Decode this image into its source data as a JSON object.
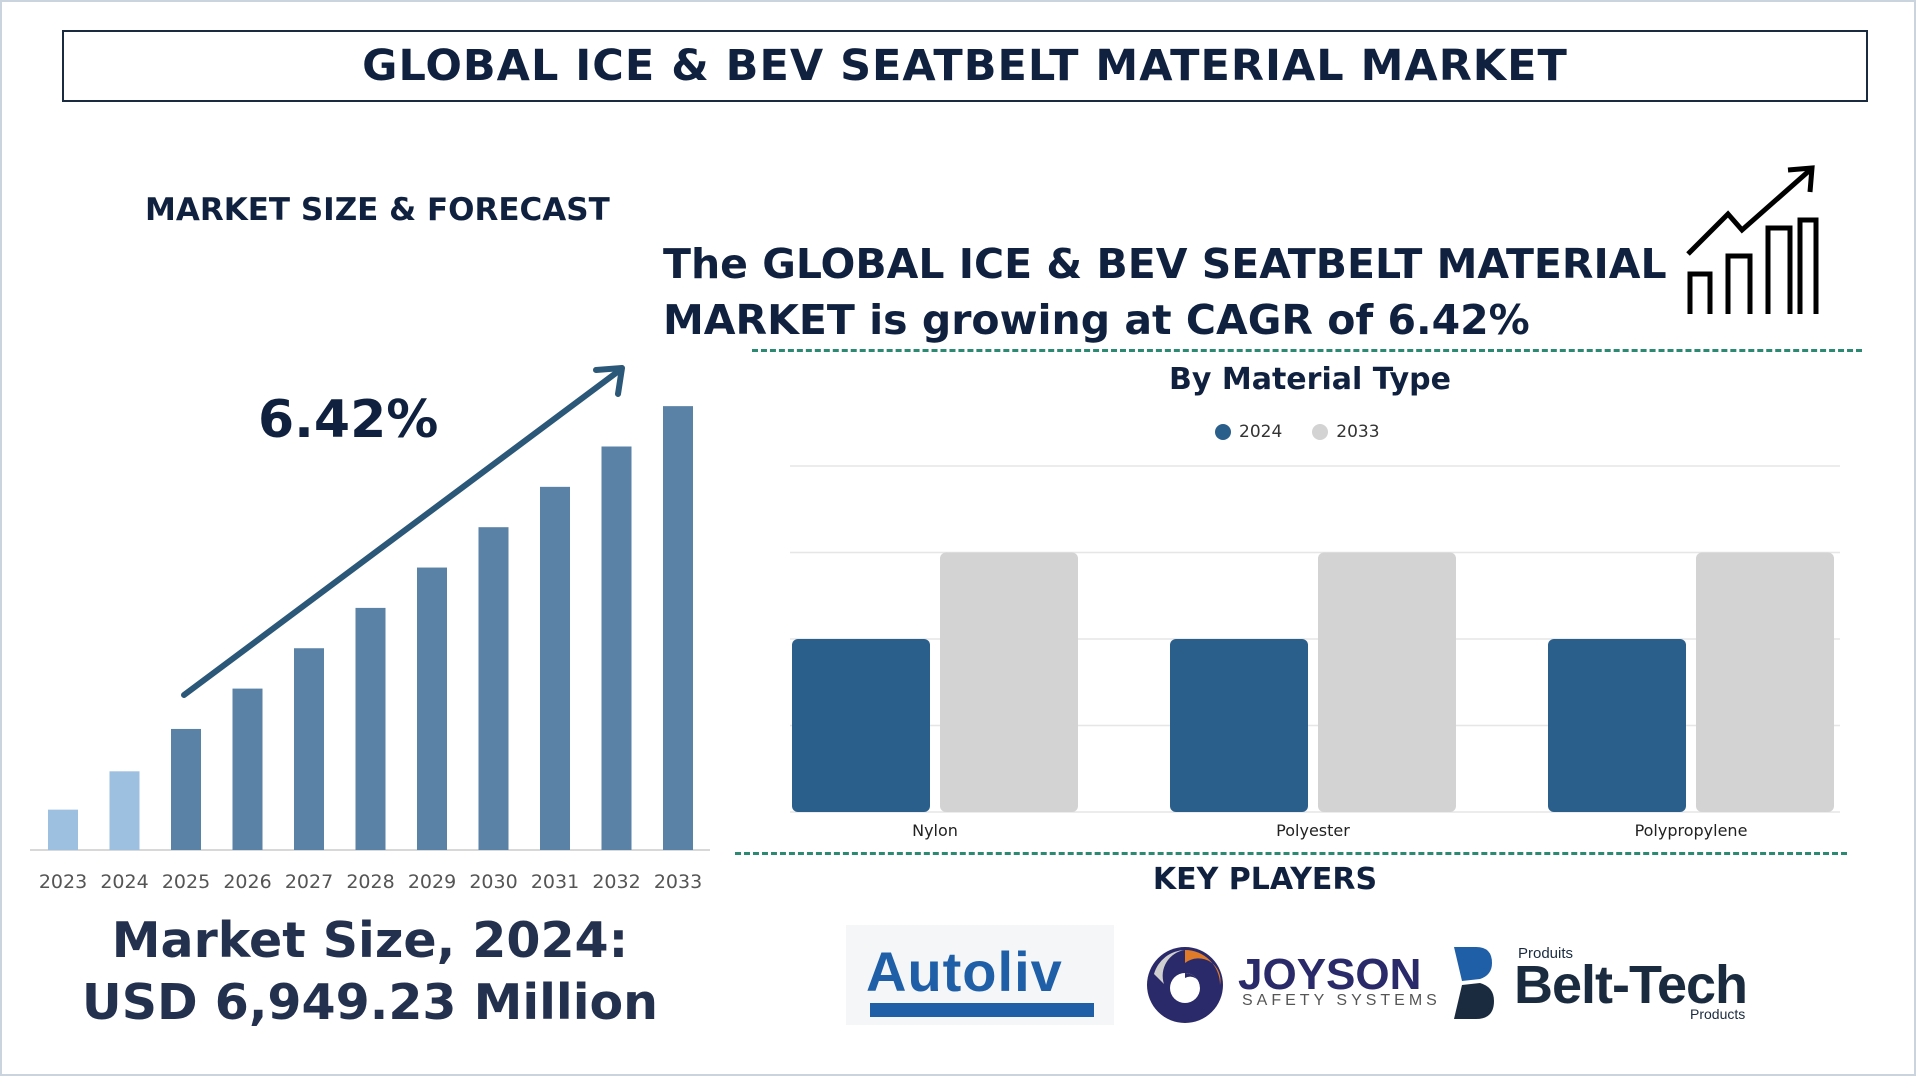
{
  "header": {
    "title": "GLOBAL ICE & BEV SEATBELT MATERIAL MARKET"
  },
  "forecast": {
    "section_title": "MARKET SIZE & FORECAST",
    "cagr_big": "6.42%",
    "market_size_line1": "Market Size, 2024:",
    "market_size_line2": "USD 6,949.23 Million"
  },
  "growth_statement": "The GLOBAL ICE & BEV SEATBELT MATERIAL MARKET is growing at CAGR of 6.42%",
  "material_chart": {
    "title": "By Material Type"
  },
  "key_players": {
    "title": "KEY PLAYERS",
    "logos": [
      {
        "name": "Autoliv",
        "text": "Autoliv"
      },
      {
        "name": "Joyson",
        "text": "JOYSON",
        "sub": "SAFETY SYSTEMS"
      },
      {
        "name": "Belt-Tech",
        "text": "Belt-Tech",
        "top": "Produits",
        "bottom": "Products"
      }
    ]
  },
  "colors": {
    "navy": "#10213f",
    "bar_light": "#9dbfe0",
    "bar_mid": "#5a82a6",
    "series_2024": "#2b5f8b",
    "series_2033": "#d3d3d3",
    "divider": "#2d8a72"
  },
  "icons": [
    "trend-arrow-icon",
    "growth-chart-icon"
  ],
  "chart_data": [
    {
      "type": "bar",
      "title": "",
      "categories": [
        "2023",
        "2024",
        "2025",
        "2026",
        "2027",
        "2028",
        "2029",
        "2030",
        "2031",
        "2032",
        "2033"
      ],
      "values": [
        1.0,
        1.95,
        3.0,
        4.0,
        5.0,
        6.0,
        7.0,
        8.0,
        9.0,
        10.0,
        11.0
      ],
      "highlight_light": [
        "2023",
        "2024"
      ],
      "ylim": [
        0,
        11.4
      ],
      "grid": false,
      "trend_label": "6.42%"
    },
    {
      "type": "bar",
      "title": "By Material Type",
      "categories": [
        "Nylon",
        "Polyester",
        "Polypropylene"
      ],
      "series": [
        {
          "name": "2024",
          "values": [
            2,
            2,
            2
          ]
        },
        {
          "name": "2033",
          "values": [
            3,
            3,
            3
          ]
        }
      ],
      "ylim": [
        0,
        4
      ],
      "grid": true,
      "legend": "top-center"
    }
  ]
}
